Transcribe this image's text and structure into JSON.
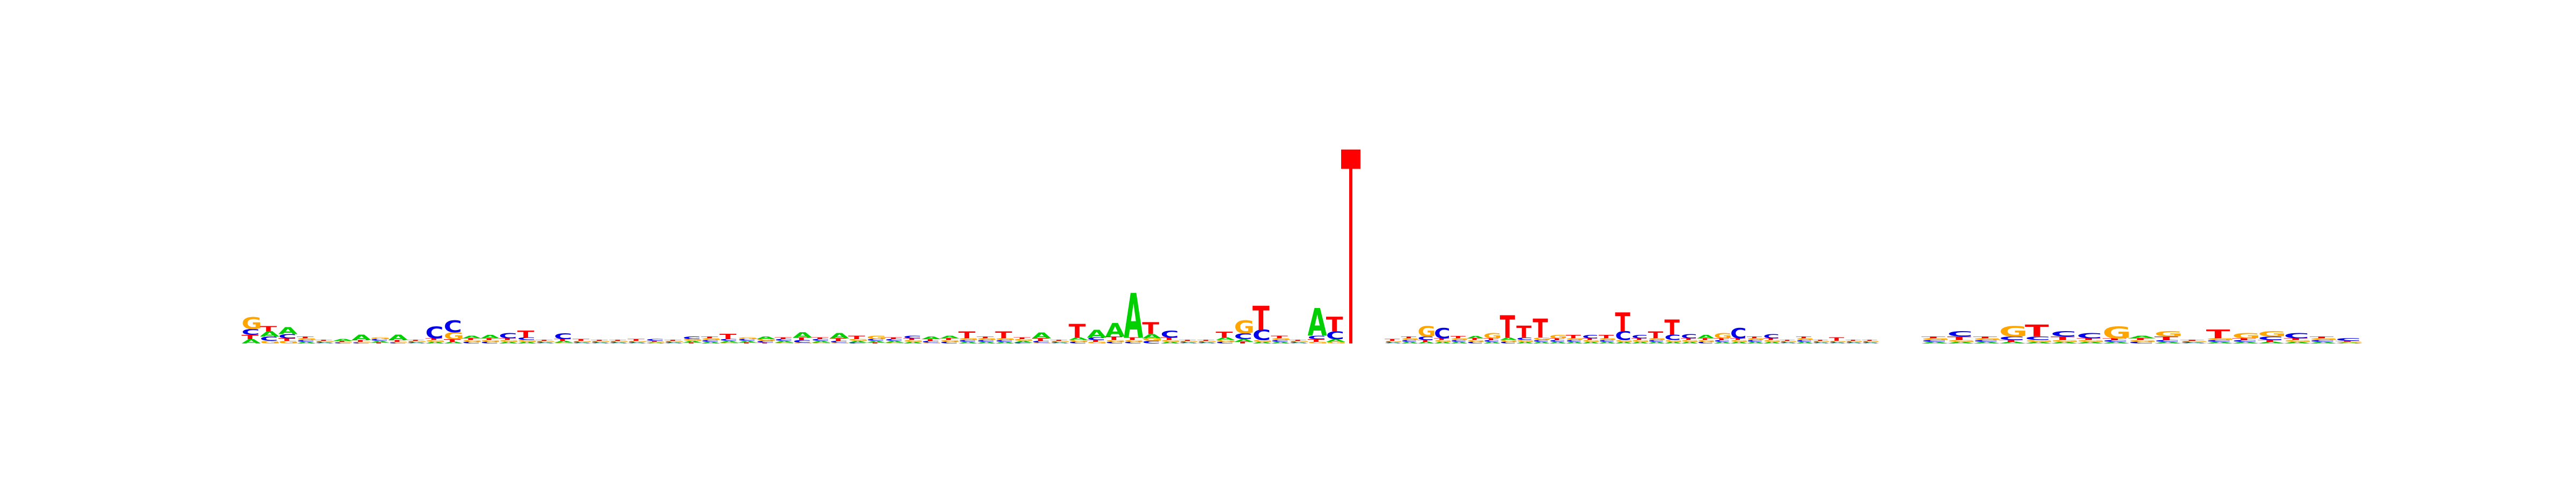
{
  "chart_data": {
    "type": "sequence-logo",
    "title": "",
    "xlabel": "",
    "ylabel": "",
    "ylim": [
      0,
      2
    ],
    "colors": {
      "A": "#00d000",
      "C": "#0000ee",
      "G": "#ffa500",
      "T": "#ff0000",
      "marker": "#ff0000"
    },
    "segments": [
      {
        "name": "left",
        "positions": [
          {
            "A": 0.05,
            "C": 0.07,
            "G": 0.14,
            "T": 0.05
          },
          {
            "A": 0.06,
            "C": 0.05,
            "G": 0.03,
            "T": 0.06
          },
          {
            "A": 0.08,
            "C": 0.05,
            "G": 0.03,
            "T": 0.03
          },
          {
            "A": 0.02,
            "C": 0.02,
            "G": 0.02,
            "T": 0.02
          },
          {
            "A": 0.01,
            "C": 0.01,
            "G": 0.01,
            "T": 0.01
          },
          {
            "A": 0.02,
            "C": 0.01,
            "G": 0.01,
            "T": 0.01
          },
          {
            "A": 0.06,
            "C": 0.01,
            "G": 0.01,
            "T": 0.02
          },
          {
            "A": 0.02,
            "C": 0.02,
            "G": 0.02,
            "T": 0.01
          },
          {
            "A": 0.06,
            "C": 0.01,
            "G": 0.01,
            "T": 0.02
          },
          {
            "A": 0.01,
            "C": 0.01,
            "G": 0.01,
            "T": 0.01
          },
          {
            "A": 0.02,
            "C": 0.14,
            "G": 0.02,
            "T": 0.02
          },
          {
            "A": 0.02,
            "C": 0.14,
            "G": 0.08,
            "T": 0.03
          },
          {
            "A": 0.03,
            "C": 0.02,
            "G": 0.02,
            "T": 0.02
          },
          {
            "A": 0.04,
            "C": 0.02,
            "G": 0.02,
            "T": 0.02
          },
          {
            "A": 0.02,
            "C": 0.06,
            "G": 0.02,
            "T": 0.02
          },
          {
            "A": 0.02,
            "C": 0.03,
            "G": 0.02,
            "T": 0.08
          },
          {
            "A": 0.01,
            "C": 0.01,
            "G": 0.01,
            "T": 0.01
          },
          {
            "A": 0.02,
            "C": 0.07,
            "G": 0.01,
            "T": 0.02
          },
          {
            "A": 0.01,
            "C": 0.01,
            "G": 0.01,
            "T": 0.02
          },
          {
            "A": 0.01,
            "C": 0.01,
            "G": 0.01,
            "T": 0.01
          },
          {
            "A": 0.01,
            "C": 0.01,
            "G": 0.01,
            "T": 0.01
          },
          {
            "A": 0.01,
            "C": 0.01,
            "G": 0.01,
            "T": 0.02
          },
          {
            "A": 0.01,
            "C": 0.02,
            "G": 0.01,
            "T": 0.01
          },
          {
            "A": 0.01,
            "C": 0.01,
            "G": 0.01,
            "T": 0.01
          },
          {
            "A": 0.02,
            "C": 0.03,
            "G": 0.02,
            "T": 0.01
          },
          {
            "A": 0.02,
            "C": 0.02,
            "G": 0.02,
            "T": 0.02
          },
          {
            "A": 0.02,
            "C": 0.02,
            "G": 0.01,
            "T": 0.06
          },
          {
            "A": 0.02,
            "C": 0.02,
            "G": 0.02,
            "T": 0.01
          },
          {
            "A": 0.03,
            "C": 0.02,
            "G": 0.02,
            "T": 0.01
          },
          {
            "A": 0.02,
            "C": 0.02,
            "G": 0.01,
            "T": 0.02
          },
          {
            "A": 0.06,
            "C": 0.03,
            "G": 0.01,
            "T": 0.03
          },
          {
            "A": 0.02,
            "C": 0.02,
            "G": 0.01,
            "T": 0.02
          },
          {
            "A": 0.06,
            "C": 0.02,
            "G": 0.01,
            "T": 0.03
          },
          {
            "A": 0.02,
            "C": 0.01,
            "G": 0.02,
            "T": 0.04
          },
          {
            "A": 0.02,
            "C": 0.02,
            "G": 0.04,
            "T": 0.01
          },
          {
            "A": 0.02,
            "C": 0.02,
            "G": 0.01,
            "T": 0.02
          },
          {
            "A": 0.02,
            "C": 0.03,
            "G": 0.02,
            "T": 0.02
          },
          {
            "A": 0.03,
            "C": 0.02,
            "G": 0.01,
            "T": 0.02
          },
          {
            "A": 0.03,
            "C": 0.02,
            "G": 0.02,
            "T": 0.02
          },
          {
            "A": 0.02,
            "C": 0.02,
            "G": 0.02,
            "T": 0.08
          },
          {
            "A": 0.02,
            "C": 0.02,
            "G": 0.02,
            "T": 0.02
          },
          {
            "A": 0.02,
            "C": 0.02,
            "G": 0.02,
            "T": 0.08
          },
          {
            "A": 0.02,
            "C": 0.01,
            "G": 0.02,
            "T": 0.02
          },
          {
            "A": 0.07,
            "C": 0.02,
            "G": 0.01,
            "T": 0.03
          },
          {
            "A": 0.01,
            "C": 0.01,
            "G": 0.01,
            "T": 0.01
          },
          {
            "A": 0.03,
            "C": 0.02,
            "G": 0.02,
            "T": 0.16
          },
          {
            "A": 0.09,
            "C": 0.03,
            "G": 0.02,
            "T": 0.02
          },
          {
            "A": 0.16,
            "C": 0.02,
            "G": 0.02,
            "T": 0.04
          },
          {
            "A": 0.52,
            "C": 0.02,
            "G": 0.02,
            "T": 0.03
          },
          {
            "A": 0.05,
            "C": 0.03,
            "G": 0.03,
            "T": 0.14
          },
          {
            "A": 0.02,
            "C": 0.08,
            "G": 0.02,
            "T": 0.03
          },
          {
            "A": 0.01,
            "C": 0.01,
            "G": 0.01,
            "T": 0.01
          },
          {
            "A": 0.01,
            "C": 0.01,
            "G": 0.01,
            "T": 0.01
          },
          {
            "A": 0.03,
            "C": 0.02,
            "G": 0.02,
            "T": 0.07
          },
          {
            "A": 0.03,
            "C": 0.07,
            "G": 0.15,
            "T": 0.02
          },
          {
            "A": 0.02,
            "C": 0.12,
            "G": 0.02,
            "T": 0.28
          },
          {
            "A": 0.02,
            "C": 0.02,
            "G": 0.02,
            "T": 0.03
          },
          {
            "A": 0.01,
            "C": 0.01,
            "G": 0.01,
            "T": 0.01
          },
          {
            "A": 0.32,
            "C": 0.04,
            "G": 0.02,
            "T": 0.03
          },
          {
            "A": 0.03,
            "C": 0.09,
            "G": 0.02,
            "T": 0.17
          }
        ]
      },
      {
        "name": "right",
        "positions": [
          {
            "A": 0.01,
            "C": 0.01,
            "G": 0.01,
            "T": 0.02
          },
          {
            "A": 0.02,
            "C": 0.02,
            "G": 0.02,
            "T": 0.02
          },
          {
            "A": 0.02,
            "C": 0.04,
            "G": 0.12,
            "T": 0.02
          },
          {
            "A": 0.02,
            "C": 0.12,
            "G": 0.02,
            "T": 0.02
          },
          {
            "A": 0.02,
            "C": 0.02,
            "G": 0.02,
            "T": 0.03
          },
          {
            "A": 0.03,
            "C": 0.02,
            "G": 0.02,
            "T": 0.02
          },
          {
            "A": 0.02,
            "C": 0.02,
            "G": 0.06,
            "T": 0.02
          },
          {
            "A": 0.03,
            "C": 0.02,
            "G": 0.02,
            "T": 0.26
          },
          {
            "A": 0.02,
            "C": 0.03,
            "G": 0.02,
            "T": 0.14
          },
          {
            "A": 0.02,
            "C": 0.02,
            "G": 0.03,
            "T": 0.22
          },
          {
            "A": 0.02,
            "C": 0.02,
            "G": 0.04,
            "T": 0.02
          },
          {
            "A": 0.02,
            "C": 0.02,
            "G": 0.02,
            "T": 0.04
          },
          {
            "A": 0.02,
            "C": 0.04,
            "G": 0.02,
            "T": 0.02
          },
          {
            "A": 0.02,
            "C": 0.02,
            "G": 0.02,
            "T": 0.04
          },
          {
            "A": 0.02,
            "C": 0.1,
            "G": 0.02,
            "T": 0.22
          },
          {
            "A": 0.02,
            "C": 0.04,
            "G": 0.02,
            "T": 0.02
          },
          {
            "A": 0.02,
            "C": 0.02,
            "G": 0.02,
            "T": 0.08
          },
          {
            "A": 0.02,
            "C": 0.06,
            "G": 0.02,
            "T": 0.18
          },
          {
            "A": 0.02,
            "C": 0.05,
            "G": 0.02,
            "T": 0.02
          },
          {
            "A": 0.04,
            "C": 0.02,
            "G": 0.02,
            "T": 0.02
          },
          {
            "A": 0.02,
            "C": 0.02,
            "G": 0.06,
            "T": 0.02
          },
          {
            "A": 0.02,
            "C": 0.12,
            "G": 0.02,
            "T": 0.02
          },
          {
            "A": 0.02,
            "C": 0.02,
            "G": 0.02,
            "T": 0.02
          },
          {
            "A": 0.02,
            "C": 0.05,
            "G": 0.02,
            "T": 0.02
          },
          {
            "A": 0.01,
            "C": 0.01,
            "G": 0.01,
            "T": 0.01
          },
          {
            "A": 0.02,
            "C": 0.02,
            "G": 0.02,
            "T": 0.02
          },
          {
            "A": 0.01,
            "C": 0.01,
            "G": 0.01,
            "T": 0.01
          },
          {
            "A": 0.01,
            "C": 0.01,
            "G": 0.01,
            "T": 0.04
          },
          {
            "A": 0.01,
            "C": 0.01,
            "G": 0.01,
            "T": 0.01
          },
          {
            "A": 0.01,
            "C": 0.01,
            "G": 0.01,
            "T": 0.01
          }
        ]
      },
      {
        "name": "right-2",
        "positions": [
          {
            "A": 0.02,
            "C": 0.02,
            "G": 0.02,
            "T": 0.02
          },
          {
            "A": 0.02,
            "C": 0.06,
            "G": 0.02,
            "T": 0.04
          },
          {
            "A": 0.02,
            "C": 0.02,
            "G": 0.02,
            "T": 0.02
          },
          {
            "A": 0.02,
            "C": 0.04,
            "G": 0.12,
            "T": 0.02
          },
          {
            "A": 0.02,
            "C": 0.04,
            "G": 0.02,
            "T": 0.14
          },
          {
            "A": 0.02,
            "C": 0.06,
            "G": 0.02,
            "T": 0.04
          },
          {
            "A": 0.02,
            "C": 0.06,
            "G": 0.02,
            "T": 0.02
          },
          {
            "A": 0.02,
            "C": 0.02,
            "G": 0.14,
            "T": 0.02
          },
          {
            "A": 0.03,
            "C": 0.02,
            "G": 0.02,
            "T": 0.02
          },
          {
            "A": 0.02,
            "C": 0.02,
            "G": 0.06,
            "T": 0.04
          },
          {
            "A": 0.01,
            "C": 0.01,
            "G": 0.01,
            "T": 0.01
          },
          {
            "A": 0.02,
            "C": 0.02,
            "G": 0.02,
            "T": 0.1
          },
          {
            "A": 0.02,
            "C": 0.02,
            "G": 0.06,
            "T": 0.02
          },
          {
            "A": 0.02,
            "C": 0.04,
            "G": 0.06,
            "T": 0.02
          },
          {
            "A": 0.02,
            "C": 0.06,
            "G": 0.02,
            "T": 0.02
          },
          {
            "A": 0.02,
            "C": 0.02,
            "G": 0.02,
            "T": 0.02
          },
          {
            "A": 0.01,
            "C": 0.03,
            "G": 0.01,
            "T": 0.01
          }
        ]
      }
    ],
    "marker": {
      "segment": "left",
      "after_position": 60,
      "value": 1.45
    }
  }
}
